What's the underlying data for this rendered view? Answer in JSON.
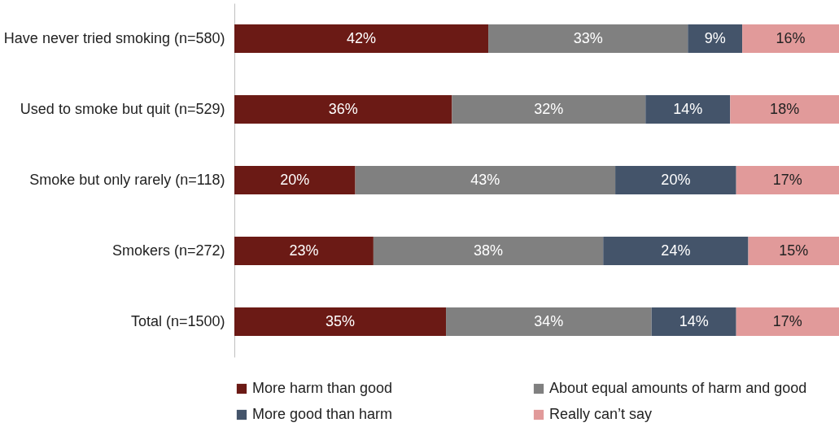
{
  "chart_data": {
    "type": "bar",
    "orientation": "horizontal",
    "stacked": true,
    "legend": "bottom",
    "grid": false,
    "categories": [
      "Have never tried smoking (n=580)",
      "Used to smoke but quit (n=529)",
      "Smoke but only rarely (n=118)",
      "Smokers (n=272)",
      "Total (n=1500)"
    ],
    "series": [
      {
        "name": "More harm than good",
        "color": "#6b1a15",
        "values": [
          42,
          36,
          20,
          23,
          35
        ],
        "value_labels": [
          "42%",
          "36%",
          "20%",
          "23%",
          "35%"
        ]
      },
      {
        "name": "About equal amounts of harm and good",
        "color": "#808080",
        "values": [
          33,
          32,
          43,
          38,
          34
        ],
        "value_labels": [
          "33%",
          "32%",
          "43%",
          "38%",
          "34%"
        ]
      },
      {
        "name": "More good than harm",
        "color": "#44546a",
        "values": [
          9,
          14,
          20,
          24,
          14
        ],
        "value_labels": [
          "9%",
          "14%",
          "20%",
          "24%",
          "14%"
        ]
      },
      {
        "name": "Really can’t say",
        "color": "#e19a9a",
        "values": [
          16,
          18,
          17,
          15,
          17
        ],
        "value_labels": [
          "16%",
          "18%",
          "17%",
          "15%",
          "17%"
        ]
      }
    ]
  }
}
